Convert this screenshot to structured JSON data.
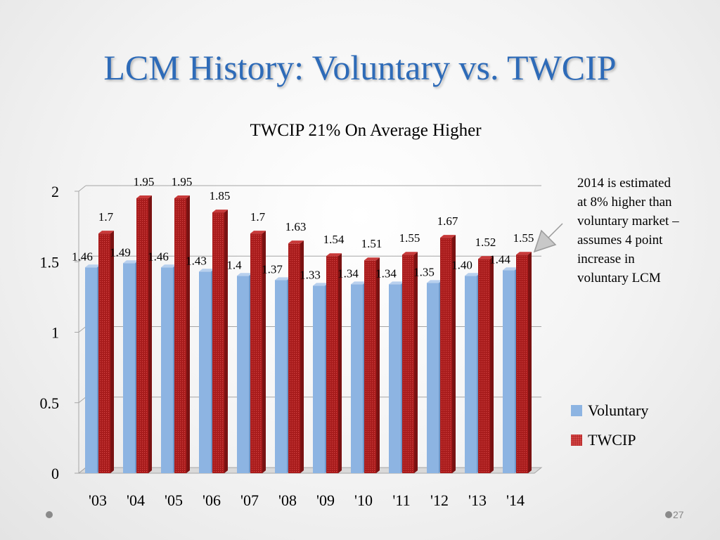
{
  "slide": {
    "title": "LCM History:  Voluntary vs. TWCIP",
    "page_number": "27"
  },
  "note": "2014 is estimated at 8% higher than voluntary market – assumes 4 point increase in voluntary LCM",
  "chart_data": {
    "type": "bar",
    "title": "TWCIP  21% On Average Higher",
    "xlabel": "",
    "ylabel": "",
    "categories": [
      "'03",
      "'04",
      "'05",
      "'06",
      "'07",
      "'08",
      "'09",
      "'10",
      "'11",
      "'12",
      "'13",
      "'14"
    ],
    "ylim": [
      0,
      2
    ],
    "yticks": [
      "0",
      "0.5",
      "1",
      "1.5",
      "2"
    ],
    "grid": true,
    "legend_position": "right",
    "series": [
      {
        "name": "Voluntary",
        "color": "#8db4e2",
        "values": [
          1.46,
          1.49,
          1.46,
          1.43,
          1.4,
          1.37,
          1.33,
          1.34,
          1.34,
          1.35,
          1.4,
          1.44
        ],
        "labels": [
          "1.46",
          "1.49",
          "1.46",
          "1.43",
          "1.4",
          "1.37",
          "1.33",
          "1.34",
          "1.34",
          "1.35",
          "1.40",
          "1.44"
        ]
      },
      {
        "name": "TWCIP",
        "color": "#b22222",
        "values": [
          1.7,
          1.95,
          1.95,
          1.85,
          1.7,
          1.63,
          1.54,
          1.51,
          1.55,
          1.67,
          1.52,
          1.55
        ],
        "labels": [
          "1.7",
          "1.95",
          "1.95",
          "1.85",
          "1.7",
          "1.63",
          "1.54",
          "1.51",
          "1.55",
          "1.67",
          "1.52",
          "1.55"
        ]
      }
    ]
  }
}
